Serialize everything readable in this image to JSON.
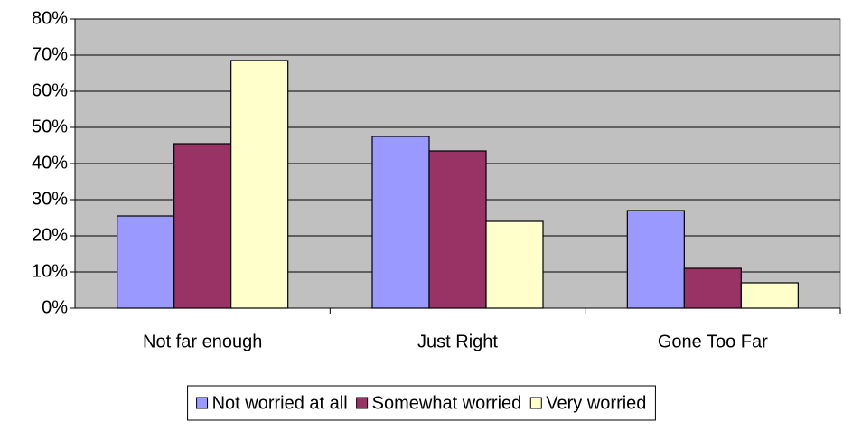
{
  "chart_data": {
    "type": "bar",
    "categories": [
      "Not far enough",
      "Just Right",
      "Gone Too Far"
    ],
    "series": [
      {
        "name": "Not worried at all",
        "color": "#9999ff",
        "values": [
          25.5,
          47.5,
          27
        ]
      },
      {
        "name": "Somewhat worried",
        "color": "#993366",
        "values": [
          45.5,
          43.5,
          11
        ]
      },
      {
        "name": "Very worried",
        "color": "#ffffcc",
        "values": [
          68.5,
          24,
          7
        ]
      }
    ],
    "ylim": [
      0,
      80
    ],
    "yticks": [
      {
        "value": 0,
        "label": "0%"
      },
      {
        "value": 10,
        "label": "10%"
      },
      {
        "value": 20,
        "label": "20%"
      },
      {
        "value": 30,
        "label": "30%"
      },
      {
        "value": 40,
        "label": "40%"
      },
      {
        "value": 50,
        "label": "50%"
      },
      {
        "value": 60,
        "label": "60%"
      },
      {
        "value": 70,
        "label": "70%"
      },
      {
        "value": 80,
        "label": "80%"
      }
    ],
    "grid": true,
    "legend": "bottom",
    "plot_background": "#c0c0c0"
  }
}
